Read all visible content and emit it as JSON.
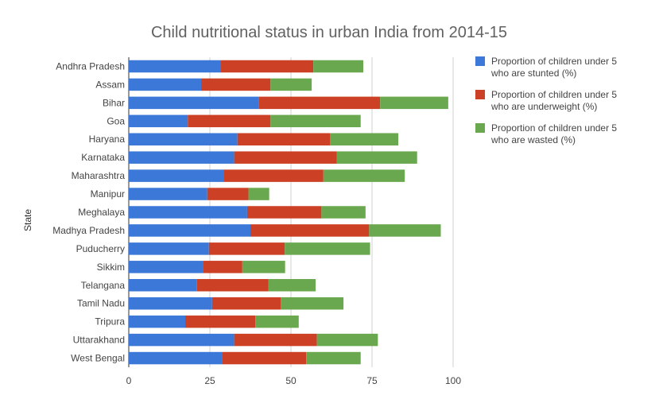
{
  "chart_data": {
    "type": "bar",
    "orientation": "horizontal",
    "stacked": true,
    "title": "Child nutritional status in urban India from 2014-15",
    "ylabel": "State",
    "xlabel": "",
    "xlim": [
      0,
      100
    ],
    "x_ticks": [
      "0",
      "25",
      "50",
      "75",
      "100"
    ],
    "grid": true,
    "legend_position": "right",
    "categories": [
      "Andhra Pradesh",
      "Assam",
      "Bihar",
      "Goa",
      "Haryana",
      "Karnataka",
      "Maharashtra",
      "Manipur",
      "Meghalaya",
      "Madhya Pradesh",
      "Puducherry",
      "Sikkim",
      "Telangana",
      "Tamil Nadu",
      "Tripura",
      "Uttarakhand",
      "West Bengal"
    ],
    "series": [
      {
        "name": "Proportion of children under 5 who are stunted (%)",
        "legend_lines": [
          "Proportion of children under 5",
          "who are stunted (%)"
        ],
        "color": "#3c78d8",
        "values": [
          28.3,
          22.3,
          40.0,
          18.2,
          33.5,
          32.5,
          29.3,
          24.2,
          36.5,
          37.5,
          24.7,
          22.9,
          21.0,
          25.7,
          17.4,
          32.5,
          28.7
        ]
      },
      {
        "name": "Proportion of children under 5 who are underweight (%)",
        "legend_lines": [
          "Proportion of children under 5",
          "who are underweight (%)"
        ],
        "color": "#cc4125",
        "values": [
          28.6,
          21.4,
          37.5,
          25.5,
          28.6,
          31.6,
          30.7,
          12.7,
          22.9,
          36.6,
          23.4,
          12.1,
          22.1,
          21.2,
          21.6,
          25.5,
          26.0
        ]
      },
      {
        "name": "Proportion of children under 5 who are wasted (%)",
        "legend_lines": [
          "Proportion of children under 5",
          "who are wasted (%)"
        ],
        "color": "#6aa84f",
        "values": [
          15.4,
          12.7,
          21.0,
          27.8,
          21.0,
          24.8,
          25.1,
          6.4,
          13.6,
          22.1,
          26.3,
          13.2,
          14.5,
          19.3,
          13.4,
          18.8,
          16.8
        ]
      }
    ]
  }
}
